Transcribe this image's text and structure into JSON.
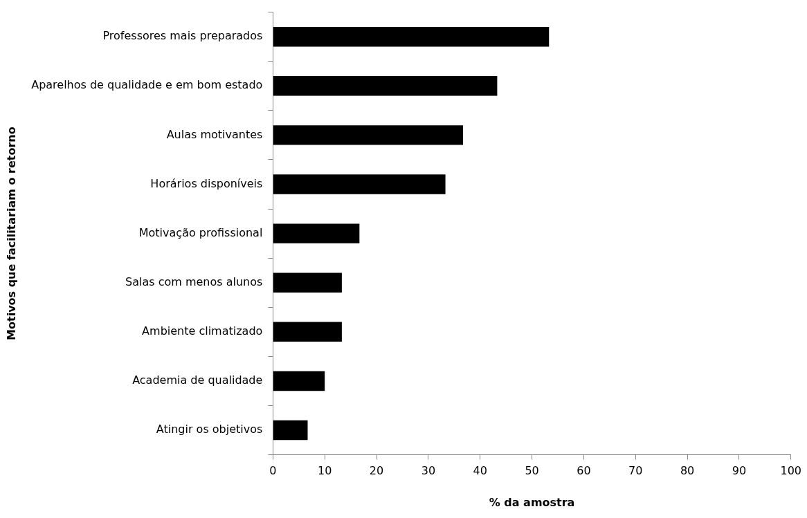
{
  "chart_data": {
    "type": "bar",
    "orientation": "horizontal",
    "xlabel": "% da amostra",
    "ylabel": "Motivos que facilitariam o retorno",
    "categories": [
      "Professores mais preparados",
      "Aparelhos de qualidade e em bom estado",
      "Aulas motivantes",
      "Horários disponíveis",
      "Motivação profissional",
      "Salas com menos alunos",
      "Ambiente climatizado",
      "Academia de qualidade",
      "Atingir os objetivos"
    ],
    "values": [
      53.3,
      43.3,
      36.7,
      33.3,
      16.7,
      13.3,
      13.3,
      10,
      6.7
    ],
    "color": "#000000",
    "xlim": [
      0,
      100
    ],
    "xticks": [
      0,
      10,
      20,
      30,
      40,
      50,
      60,
      70,
      80,
      90,
      100
    ],
    "grid": false,
    "legend": false
  }
}
